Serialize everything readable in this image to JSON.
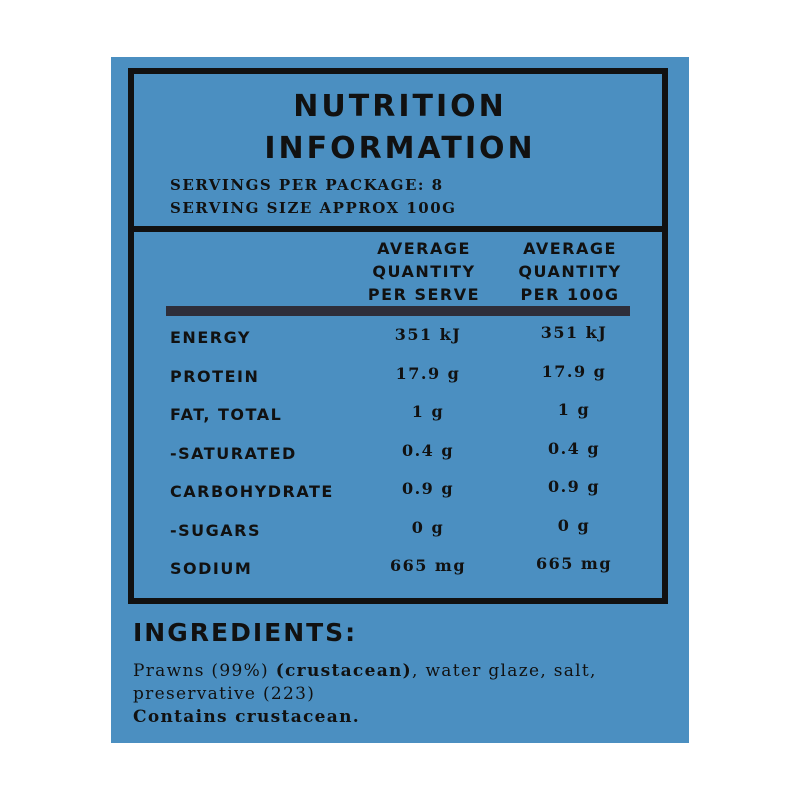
{
  "title": "NUTRITION INFORMATION",
  "servings": [
    "SERVINGS PER PACKAGE: 8",
    "SERVING SIZE APPROX 100G"
  ],
  "table": {
    "headers": [
      "AVERAGE QUANTITY PER SERVE",
      "AVERAGE QUANTITY PER 100G"
    ],
    "rows": [
      [
        "ENERGY",
        "351 kJ",
        "351 kJ"
      ],
      [
        "PROTEIN",
        "17.9 g",
        "17.9 g"
      ],
      [
        "FAT, TOTAL",
        "1 g",
        "1 g"
      ],
      [
        "-SATURATED",
        "0.4 g",
        "0.4 g"
      ],
      [
        "CARBOHYDRATE",
        "0.9 g",
        "0.9 g"
      ],
      [
        "-SUGARS",
        "0 g",
        "0 g"
      ],
      [
        "SODIUM",
        "665 mg",
        "665 mg"
      ]
    ]
  },
  "ingredients": {
    "heading": "INGREDIENTS:",
    "text": [
      "Prawns (99%) ",
      "(crustacean)",
      ", water glaze, salt, preservative (223)"
    ],
    "allergen": "Contains crustacean."
  }
}
